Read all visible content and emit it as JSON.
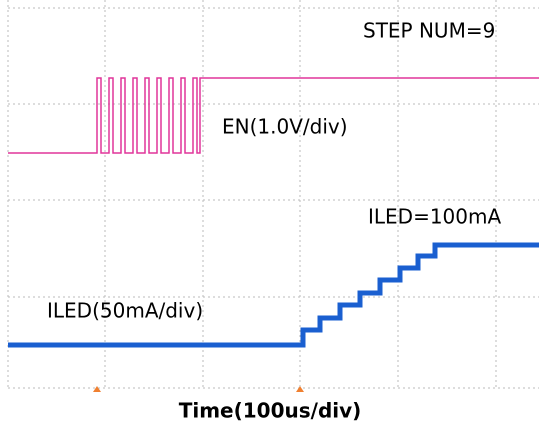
{
  "annotations": {
    "step_num": "STEP NUM=9",
    "en_scale": "EN(1.0V/div)",
    "iled_final": "ILED=100mA",
    "iled_scale": "ILED(50mA/div)"
  },
  "x_axis_label": "Time(100us/div)"
}
